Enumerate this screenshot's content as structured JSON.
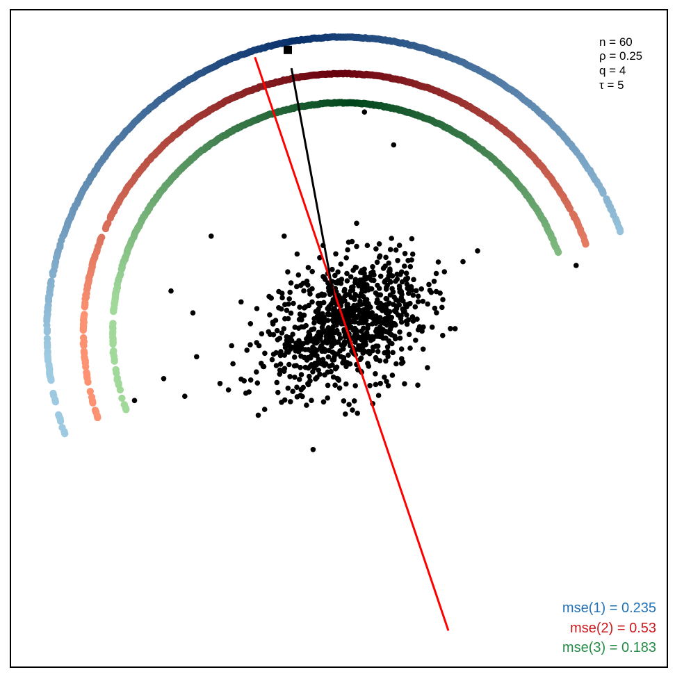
{
  "chart_data": {
    "type": "scatter",
    "params": [
      "n = 60",
      "ρ = 0.25",
      "q = 4",
      "τ = 5"
    ],
    "legend": [
      {
        "label": "mse(1) = 0.235",
        "color": "#2171b5"
      },
      {
        "label": "mse(2) = 0.53",
        "color": "#cb181d"
      },
      {
        "label": "mse(3) = 0.183",
        "color": "#238b45"
      }
    ],
    "x_range": [
      -4.5,
      4.5
    ],
    "y_range": [
      -4.5,
      4.5
    ],
    "scatter": {
      "center": [
        0.1,
        0.2
      ],
      "sd": [
        0.55,
        0.45
      ],
      "count": 900,
      "outliers": [
        [
          -1.75,
          1.4
        ],
        [
          -2.3,
          0.65
        ],
        [
          -2.0,
          0.35
        ],
        [
          -1.95,
          -0.25
        ],
        [
          -2.4,
          -0.55
        ],
        [
          -2.8,
          -0.85
        ],
        [
          0.35,
          3.1
        ],
        [
          0.75,
          2.65
        ],
        [
          3.25,
          1.0
        ],
        [
          1.7,
          1.05
        ],
        [
          1.9,
          1.2
        ],
        [
          -0.75,
          1.4
        ]
      ]
    },
    "mean_point": [
      0.05,
      0.08
    ],
    "arcs": [
      {
        "name": "1",
        "radius": 4.05,
        "start_deg": 20,
        "end_deg": 200,
        "peak_deg": 100,
        "color_light": "#9ecae1",
        "color_dark": "#08306b"
      },
      {
        "name": "2",
        "radius": 3.55,
        "start_deg": 20,
        "end_deg": 200,
        "peak_deg": 92,
        "color_light": "#fc9272",
        "color_dark": "#67000d"
      },
      {
        "name": "3",
        "radius": 3.15,
        "start_deg": 20,
        "end_deg": 200,
        "peak_deg": 88,
        "color_light": "#a1d99b",
        "color_dark": "#00441b"
      }
    ],
    "lines": [
      {
        "color": "#ff0000",
        "from": [
          -1.15,
          3.85
        ],
        "to": [
          1.5,
          -4.0
        ]
      },
      {
        "color": "#000000",
        "from": [
          -0.65,
          3.7
        ],
        "to": [
          0.0,
          0.2
        ]
      }
    ],
    "marker_square": [
      -0.7,
      3.95
    ]
  }
}
